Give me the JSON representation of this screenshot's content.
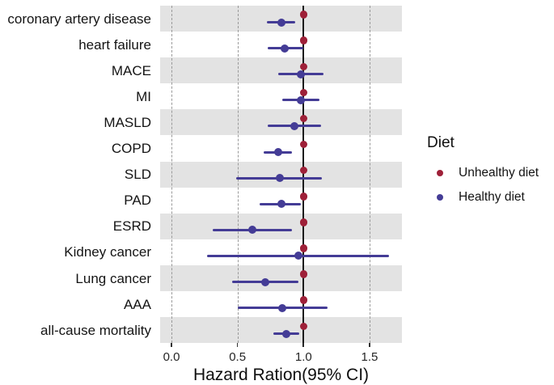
{
  "axis": {
    "xlabel": "Hazard Ration(95% CI)",
    "ticks": [
      {
        "value": 0.0,
        "label": "0.0"
      },
      {
        "value": 0.5,
        "label": "0.5"
      },
      {
        "value": 1.0,
        "label": "1.0"
      },
      {
        "value": 1.5,
        "label": "1.5"
      }
    ]
  },
  "legend": {
    "title": "Diet",
    "items": [
      {
        "label": "Unhealthy diet",
        "color": "#9e2038"
      },
      {
        "label": "Healthy diet",
        "color": "#443c96"
      }
    ]
  },
  "colors": {
    "unhealthy": "#9e2038",
    "healthy": "#443c96",
    "stripe": "#e3e3e3",
    "gridline": "#9a9a9a",
    "reference_line": "#1c1c1c"
  },
  "chart_data": {
    "type": "scatter",
    "variant": "forest-plot",
    "title": "",
    "xlabel": "Hazard Ration(95% CI)",
    "ylabel": "",
    "xlim": [
      -0.07,
      1.75
    ],
    "x_ticks": [
      0.0,
      0.5,
      1.0,
      1.5
    ],
    "gridlines": {
      "dashed_at": [
        0.0,
        0.5,
        1.5
      ],
      "solid_reference_at": 1.0
    },
    "legend_position": "right",
    "striped_rows": "odd rows shaded grey starting with first",
    "categories": [
      "coronary artery disease",
      "heart failure",
      "MACE",
      "MI",
      "MASLD",
      "COPD",
      "SLD",
      "PAD",
      "ESRD",
      "Kidney cancer",
      "Lung cancer",
      "AAA",
      "all-cause mortality"
    ],
    "series": [
      {
        "name": "Unhealthy diet",
        "role": "reference",
        "color": "#9e2038",
        "hr": [
          1.0,
          1.0,
          1.0,
          1.0,
          1.0,
          1.0,
          1.0,
          1.0,
          1.0,
          1.0,
          1.0,
          1.0,
          1.0
        ]
      },
      {
        "name": "Healthy diet",
        "color": "#443c96",
        "hr": [
          0.83,
          0.86,
          0.98,
          0.98,
          0.93,
          0.81,
          0.82,
          0.83,
          0.61,
          0.96,
          0.71,
          0.84,
          0.87
        ],
        "ci_low": [
          0.72,
          0.73,
          0.81,
          0.84,
          0.73,
          0.7,
          0.49,
          0.67,
          0.31,
          0.27,
          0.46,
          0.5,
          0.77
        ],
        "ci_high": [
          0.94,
          1.0,
          1.15,
          1.12,
          1.13,
          0.91,
          1.14,
          0.98,
          0.91,
          1.65,
          0.96,
          1.18,
          0.97
        ]
      }
    ]
  }
}
